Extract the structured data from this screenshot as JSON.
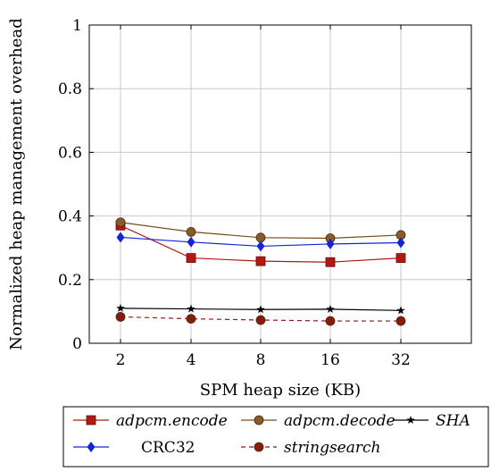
{
  "chart_data": {
    "type": "line",
    "title": "",
    "xlabel": "SPM heap size (KB)",
    "ylabel": "Normalized heap management overhead",
    "categories": [
      "2",
      "4",
      "8",
      "16",
      "32"
    ],
    "yticks": [
      "0",
      "0.2",
      "0.4",
      "0.6",
      "0.8",
      "1"
    ],
    "ylim": [
      0,
      1
    ],
    "grid": true,
    "legend_position": "bottom",
    "series": [
      {
        "name": "adpcm.encode",
        "values": [
          0.37,
          0.268,
          0.258,
          0.255,
          0.268
        ],
        "color": "#b01a12",
        "marker": "square",
        "dash": "solid",
        "italic": true
      },
      {
        "name": "adpcm.decode",
        "values": [
          0.38,
          0.35,
          0.332,
          0.33,
          0.34
        ],
        "color": "#7a4a1c",
        "marker": "circle",
        "dash": "solid",
        "italic": true
      },
      {
        "name": "SHA",
        "values": [
          0.11,
          0.108,
          0.106,
          0.107,
          0.103
        ],
        "color": "#000000",
        "marker": "star",
        "dash": "solid",
        "italic": true
      },
      {
        "name": "CRC32",
        "values": [
          0.333,
          0.318,
          0.305,
          0.312,
          0.316
        ],
        "color": "#1226d8",
        "marker": "diamond",
        "dash": "solid",
        "italic": false
      },
      {
        "name": "stringsearch",
        "values": [
          0.083,
          0.077,
          0.073,
          0.07,
          0.07
        ],
        "color": "#8b1a0e",
        "marker": "circle",
        "dash": "dashed",
        "italic": true
      }
    ]
  }
}
